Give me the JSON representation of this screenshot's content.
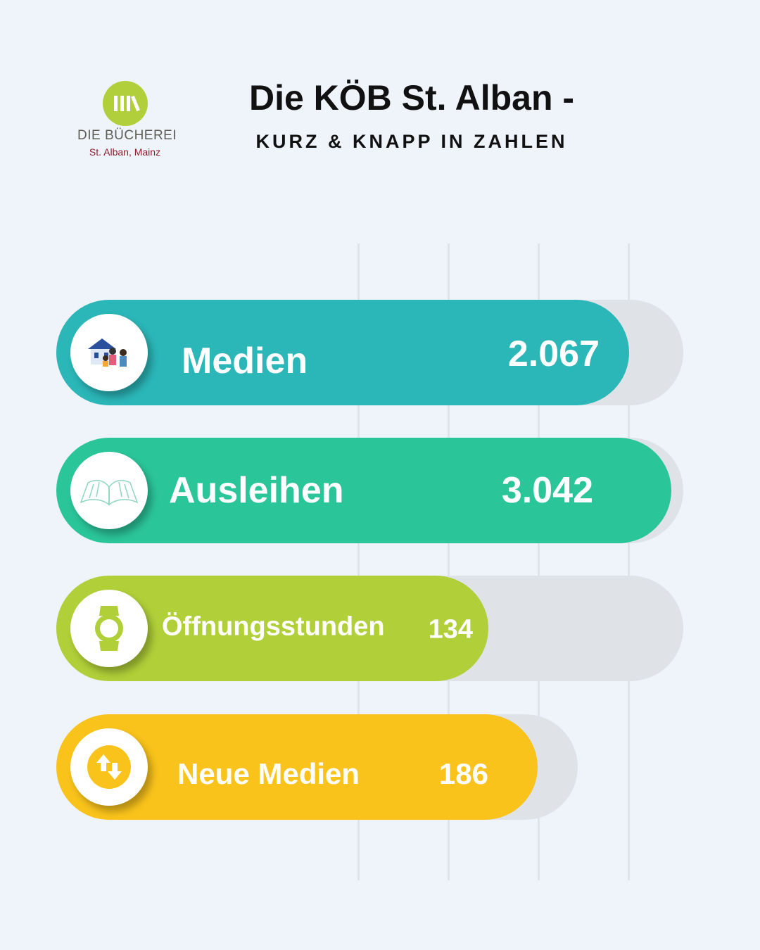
{
  "logo": {
    "line1": "DIE BÜCHEREI",
    "line2": "St. Alban, Mainz"
  },
  "header": {
    "title": "Die KÖB St. Alban -",
    "subtitle": "KURZ & KNAPP IN ZAHLEN"
  },
  "stats": [
    {
      "label": "Medien",
      "value": "2.067",
      "icon": "family-house-icon",
      "color": "#2bb6b8"
    },
    {
      "label": "Ausleihen",
      "value": "3.042",
      "icon": "open-book-icon",
      "color": "#2bc59a"
    },
    {
      "label": "Öffnungsstunden",
      "value": "134",
      "icon": "watch-icon",
      "color": "#b0cf38"
    },
    {
      "label": "Neue Medien",
      "value": "186",
      "icon": "up-down-arrows-icon",
      "color": "#f9c31b"
    }
  ]
}
